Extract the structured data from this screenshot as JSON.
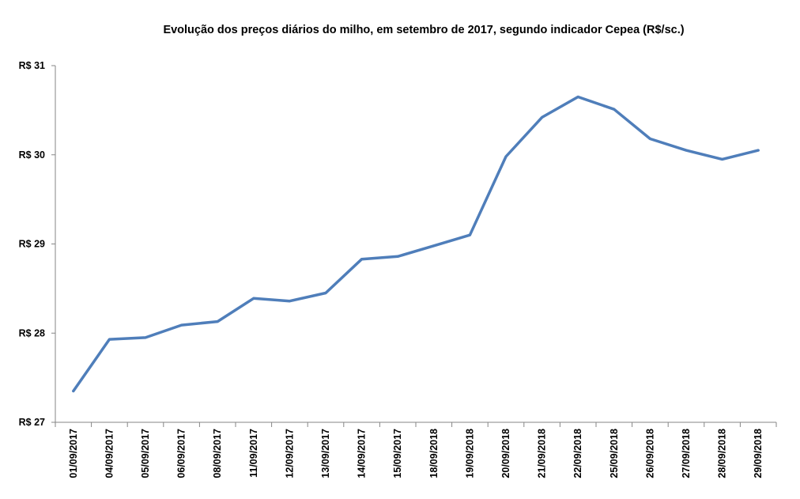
{
  "chart_data": {
    "type": "line",
    "title": "Evolução dos preços diários do milho,  em setembro de 2017, segundo indicador Cepea (R$/sc.)",
    "xlabel": "",
    "ylabel": "",
    "categories": [
      "01/09/2017",
      "04/09/2017",
      "05/09/2017",
      "06/09/2017",
      "08/09/2017",
      "11/09/2017",
      "12/09/2017",
      "13/09/2017",
      "14/09/2017",
      "15/09/2017",
      "18/09/2018",
      "19/09/2018",
      "20/09/2018",
      "21/09/2018",
      "22/09/2018",
      "25/09/2018",
      "26/09/2018",
      "27/09/2018",
      "28/09/2018",
      "29/09/2018"
    ],
    "series": [
      {
        "values": [
          27.35,
          27.93,
          27.95,
          28.09,
          28.13,
          28.39,
          28.36,
          28.45,
          28.83,
          28.86,
          28.98,
          29.1,
          29.98,
          30.42,
          30.65,
          30.51,
          30.18,
          30.05,
          29.95,
          30.05
        ]
      }
    ],
    "ylim": [
      27,
      31
    ],
    "yticks": [
      27,
      28,
      29,
      30,
      31
    ],
    "ytick_labels": [
      "R$ 27",
      "R$ 28",
      "R$ 29",
      "R$ 30",
      "R$ 31"
    ],
    "grid": false,
    "legend": "none",
    "line_color": "#4F7EBA"
  }
}
